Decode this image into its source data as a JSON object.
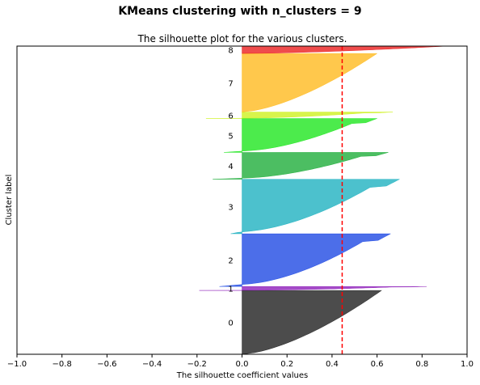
{
  "figure": {
    "suptitle": "KMeans clustering with n_clusters = 9"
  },
  "chart_data": {
    "type": "area",
    "title": "The silhouette plot for the various clusters.",
    "xlabel": "The silhouette coefficient values",
    "ylabel": "Cluster label",
    "xlim": [
      -1.0,
      1.0
    ],
    "ylim": [
      0,
      1000
    ],
    "xticks": [
      "−1.0",
      "−0.8",
      "−0.6",
      "−0.4",
      "−0.2",
      "0.0",
      "0.2",
      "0.4",
      "0.6",
      "0.8",
      "1.0"
    ],
    "xtick_values": [
      -1.0,
      -0.8,
      -0.6,
      -0.4,
      -0.2,
      0.0,
      0.2,
      0.4,
      0.6,
      0.8,
      1.0
    ],
    "yticks": [],
    "grid": false,
    "average_silhouette": 0.445,
    "average_line_color": "#ff0000",
    "clusters": [
      {
        "label": "0",
        "y_start": 0,
        "y_end": 207,
        "max": 0.62,
        "min": 0.0,
        "color": "#000000"
      },
      {
        "label": "1",
        "y_start": 207,
        "y_end": 220,
        "max": 0.82,
        "min": -0.19,
        "color": "#7f00b0"
      },
      {
        "label": "2",
        "y_start": 220,
        "y_end": 391,
        "max": 0.66,
        "min": -0.1,
        "color": "#0030e0"
      },
      {
        "label": "3",
        "y_start": 391,
        "y_end": 568,
        "max": 0.7,
        "min": -0.05,
        "color": "#00a6b8"
      },
      {
        "label": "4",
        "y_start": 568,
        "y_end": 655,
        "max": 0.65,
        "min": -0.13,
        "color": "#00a220"
      },
      {
        "label": "5",
        "y_start": 655,
        "y_end": 765,
        "max": 0.6,
        "min": -0.08,
        "color": "#00e300"
      },
      {
        "label": "6",
        "y_start": 765,
        "y_end": 786,
        "max": 0.67,
        "min": -0.16,
        "color": "#c8f000"
      },
      {
        "label": "7",
        "y_start": 786,
        "y_end": 976,
        "max": 0.6,
        "min": 0.0,
        "color": "#ffb000"
      },
      {
        "label": "8",
        "y_start": 976,
        "y_end": 1000,
        "max": 0.91,
        "min": 0.0,
        "color": "#e80000"
      }
    ]
  }
}
